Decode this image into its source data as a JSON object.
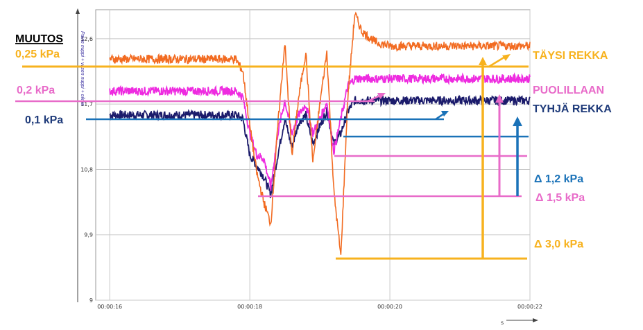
{
  "chart_data": {
    "type": "line",
    "xlabel": "s",
    "ylabel": "",
    "ylim": [
      9.0,
      13.0
    ],
    "y_ticks": [
      "12,6",
      "11,7",
      "10,8",
      "9,9",
      "9"
    ],
    "x_ticks": [
      "00:00:16",
      "00:00:18",
      "00:00:20",
      "00:00:22"
    ],
    "vertical_legend": "Paine nuppi + vasen nuppi + oikea",
    "grid": true,
    "series": [
      {
        "name": "TÄYSI REKKA",
        "color": "#F26B21",
        "x": [
          16.0,
          17.8,
          17.9,
          18.0,
          18.1,
          18.2,
          18.3,
          18.4,
          18.5,
          18.6,
          18.7,
          18.8,
          18.9,
          19.0,
          19.1,
          19.2,
          19.3,
          19.4,
          19.5,
          19.6,
          19.8,
          20.0,
          21.0,
          22.0
        ],
        "y": [
          12.32,
          12.32,
          12.15,
          11.4,
          10.75,
          10.35,
          10.05,
          11.4,
          12.55,
          11.0,
          11.8,
          12.42,
          10.9,
          11.7,
          12.42,
          10.5,
          9.6,
          11.8,
          12.95,
          12.7,
          12.55,
          12.5,
          12.5,
          12.5
        ]
      },
      {
        "name": "PUOLILLAAN",
        "color": "#EE2BE0",
        "x": [
          16.0,
          17.8,
          17.9,
          18.0,
          18.1,
          18.2,
          18.3,
          18.4,
          18.5,
          18.6,
          18.7,
          18.8,
          18.9,
          19.0,
          19.1,
          19.2,
          19.3,
          19.4,
          19.5,
          22.0
        ],
        "y": [
          11.88,
          11.88,
          11.8,
          11.3,
          11.0,
          10.95,
          10.55,
          11.3,
          11.75,
          11.3,
          11.55,
          11.7,
          11.3,
          11.5,
          11.72,
          11.05,
          11.5,
          11.95,
          12.05,
          12.05
        ]
      },
      {
        "name": "TYHJÄ REKKA",
        "color": "#1B1B6B",
        "x": [
          16.0,
          17.8,
          17.9,
          18.0,
          18.1,
          18.2,
          18.3,
          18.4,
          18.5,
          18.6,
          18.7,
          18.8,
          18.9,
          19.0,
          19.1,
          19.2,
          19.3,
          19.4,
          19.5,
          22.0
        ],
        "y": [
          11.55,
          11.55,
          11.5,
          11.0,
          10.85,
          10.7,
          10.45,
          11.0,
          11.5,
          11.1,
          11.45,
          11.55,
          11.15,
          11.4,
          11.6,
          11.15,
          11.3,
          11.6,
          11.75,
          11.75
        ]
      }
    ]
  },
  "annotations": {
    "muutos": "MUUTOS",
    "full_kpa": "0,25 kPa",
    "half_kpa": "0,2 kPa",
    "empty_kpa": "0,1 kPa",
    "full_label": "TÄYSI REKKA",
    "half_label": "PUOLILLAAN",
    "empty_label": "TYHJÄ REKKA",
    "delta_empty": "Δ 1,2 kPa",
    "delta_half": "Δ 1,5 kPa",
    "delta_full": "Δ 3,0 kPa"
  },
  "colors": {
    "orange": "#F26B21",
    "magenta": "#EE2BE0",
    "navy": "#1B1B6B",
    "gold": "#F7B21E",
    "pink": "#E86BC9",
    "blue": "#1A72B8",
    "darkblue": "#1F3B7A"
  }
}
